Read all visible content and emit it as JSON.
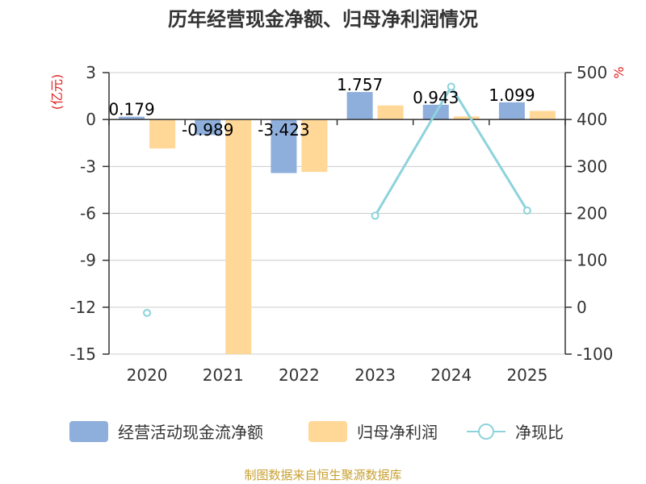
{
  "chart_data": {
    "type": "bar",
    "title": "历年经营现金净额、归母净利润情况",
    "categories": [
      "2020",
      "2021",
      "2022",
      "2023",
      "2024",
      "2025"
    ],
    "y_left": {
      "unit": "(亿元)",
      "min": -15,
      "max": 3,
      "ticks": [
        "3",
        "0",
        "-3",
        "-6",
        "-9",
        "-12",
        "-15"
      ]
    },
    "y_right": {
      "unit": "%",
      "min": -100,
      "max": 500,
      "ticks": [
        "500",
        "400",
        "300",
        "200",
        "100",
        "0",
        "-100"
      ]
    },
    "series": [
      {
        "name": "经营活动现金流净额",
        "type": "bar",
        "axis": "left",
        "color": "#8eaedb",
        "values": [
          0.179,
          -0.989,
          -3.423,
          1.757,
          0.943,
          1.099
        ],
        "labels": [
          "0.179",
          "-0.989",
          "-3.423",
          "1.757",
          "0.943",
          "1.099"
        ]
      },
      {
        "name": "归母净利润",
        "type": "bar",
        "axis": "left",
        "color": "#ffd797",
        "values": [
          -1.85,
          -15.0,
          -3.35,
          0.9,
          0.2,
          0.55
        ]
      },
      {
        "name": "净现比",
        "type": "line",
        "axis": "right",
        "color": "#8dd3dc",
        "values": [
          -12,
          null,
          null,
          195,
          470,
          206
        ]
      }
    ],
    "grid": true,
    "legend": "bottom"
  },
  "colors": {
    "unit_label": "#e02020",
    "source": "#c8a032",
    "axis": "#333333",
    "grid": "#cccccc"
  },
  "source": "制图数据来自恒生聚源数据库"
}
